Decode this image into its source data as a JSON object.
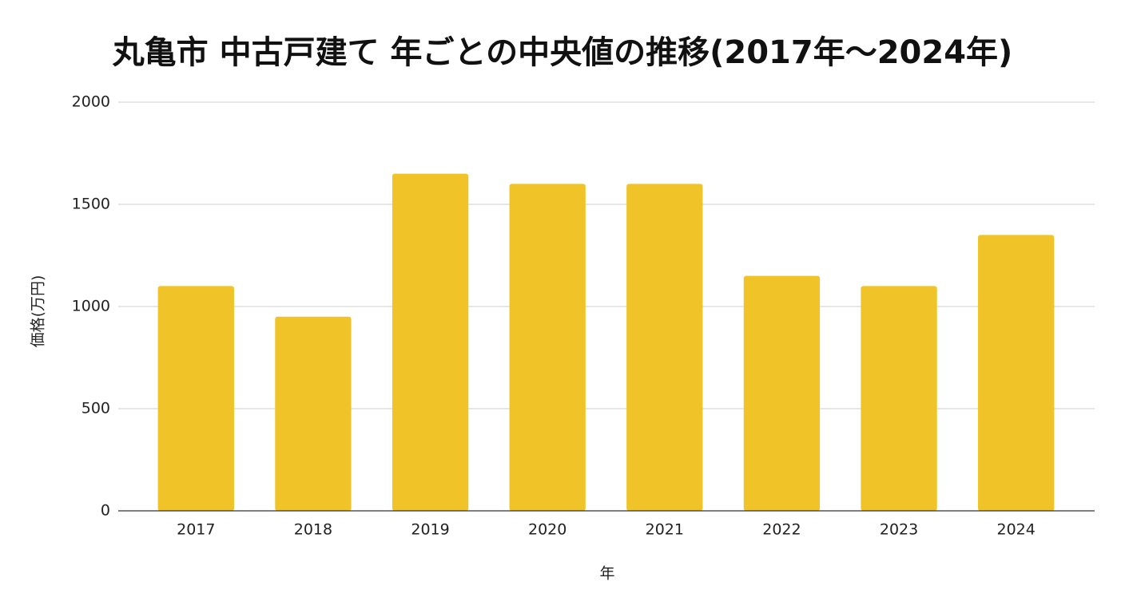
{
  "chart_data": {
    "type": "bar",
    "title": "丸亀市 中古戸建て 年ごとの中央値の推移(2017年〜2024年)",
    "x_label": "年",
    "y_label": "価格(万円)",
    "categories": [
      "2017",
      "2018",
      "2019",
      "2020",
      "2021",
      "2022",
      "2023",
      "2024"
    ],
    "values": [
      1100,
      950,
      1650,
      1600,
      1600,
      1150,
      1100,
      1350
    ],
    "color": "#f0c428",
    "ylim": [
      0,
      2000
    ],
    "yticks": [
      0,
      500,
      1000,
      1500,
      2000
    ],
    "grid": true
  }
}
